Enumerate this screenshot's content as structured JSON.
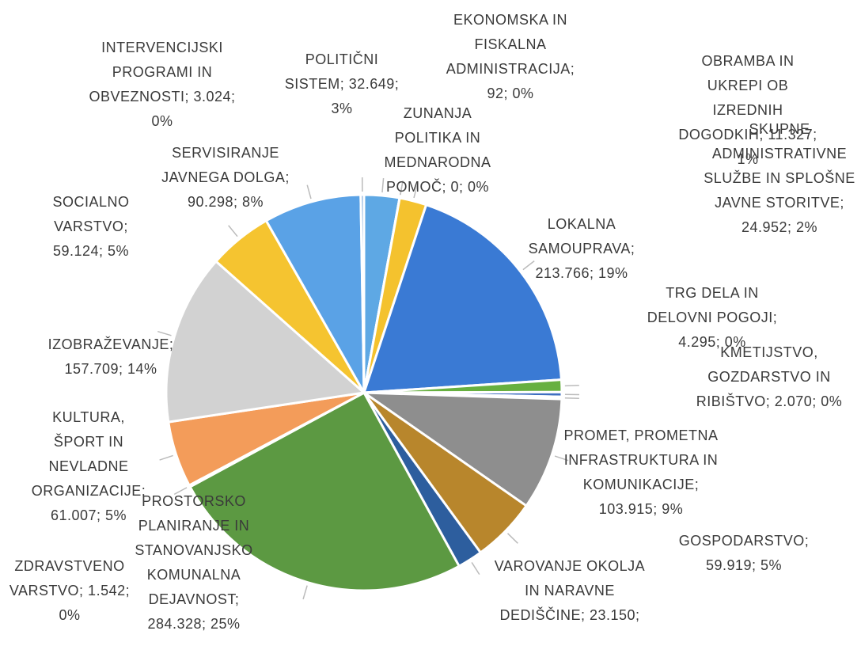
{
  "chart_data": {
    "type": "pie",
    "labels": [
      "POLITIČNI SISTEM; 32.649; 3%",
      "EKONOMSKA IN FISKALNA ADMINISTRACIJA; 92; 0%",
      "ZUNANJA POLITIKA IN MEDNARODNA POMOČ; 0; 0%",
      "SKUPNE ADMINISTRATIVNE SLUŽBE IN SPLOŠNE JAVNE STORITVE; 24.952; 2%",
      "LOKALNA SAMOUPRAVA; 213.766; 19%",
      "OBRAMBA IN UKREPI OB IZREDNIH DOGODKIH; 11.327; 1%",
      "TRG DELA IN DELOVNI POGOJI; 4.295; 0%",
      "KMETIJSTVO, GOZDARSTVO IN RIBIŠTVO; 2.070; 0%",
      "PROMET, PROMETNA INFRASTRUKTURA IN KOMUNIKACIJE; 103.915; 9%",
      "GOSPODARSTVO; 59.919; 5%",
      "VAROVANJE OKOLJA IN NARAVNE DEDIŠČINE; 23.150;",
      "PROSTORSKO PLANIRANJE IN STANOVANJSKO KOMUNALNA DEJAVNOST; 284.328; 25%",
      "ZDRAVSTVENO VARSTVO; 1.542; 0%",
      "KULTURA, ŠPORT IN NEVLADNE ORGANIZACIJE; 61.007; 5%",
      "IZOBRAŽEVANJE; 157.709; 14%",
      "SOCIALNO VARSTVO; 59.124; 5%",
      "SERVISIRANJE JAVNEGA DOLGA; 90.298; 8%",
      "INTERVENCIJSKI PROGRAMI IN OBVEZNOSTI; 3.024; 0%"
    ],
    "values": [
      32649,
      92,
      0,
      24952,
      213766,
      11327,
      4295,
      2070,
      103915,
      59919,
      23150,
      284328,
      1542,
      61007,
      157709,
      59124,
      90298,
      3024
    ],
    "colors": [
      "#5ea8e4",
      "#4a86d0",
      "#f2bf2c",
      "#f4c22e",
      "#3a7ad4",
      "#67b040",
      "#3f6fc0",
      "#aaaaaa",
      "#8e8e8e",
      "#b8862c",
      "#2d5e9e",
      "#5c9942",
      "#6e99d8",
      "#f39c5a",
      "#d2d2d2",
      "#f5c430",
      "#5aa2e6",
      "#7fa9d8"
    ]
  }
}
